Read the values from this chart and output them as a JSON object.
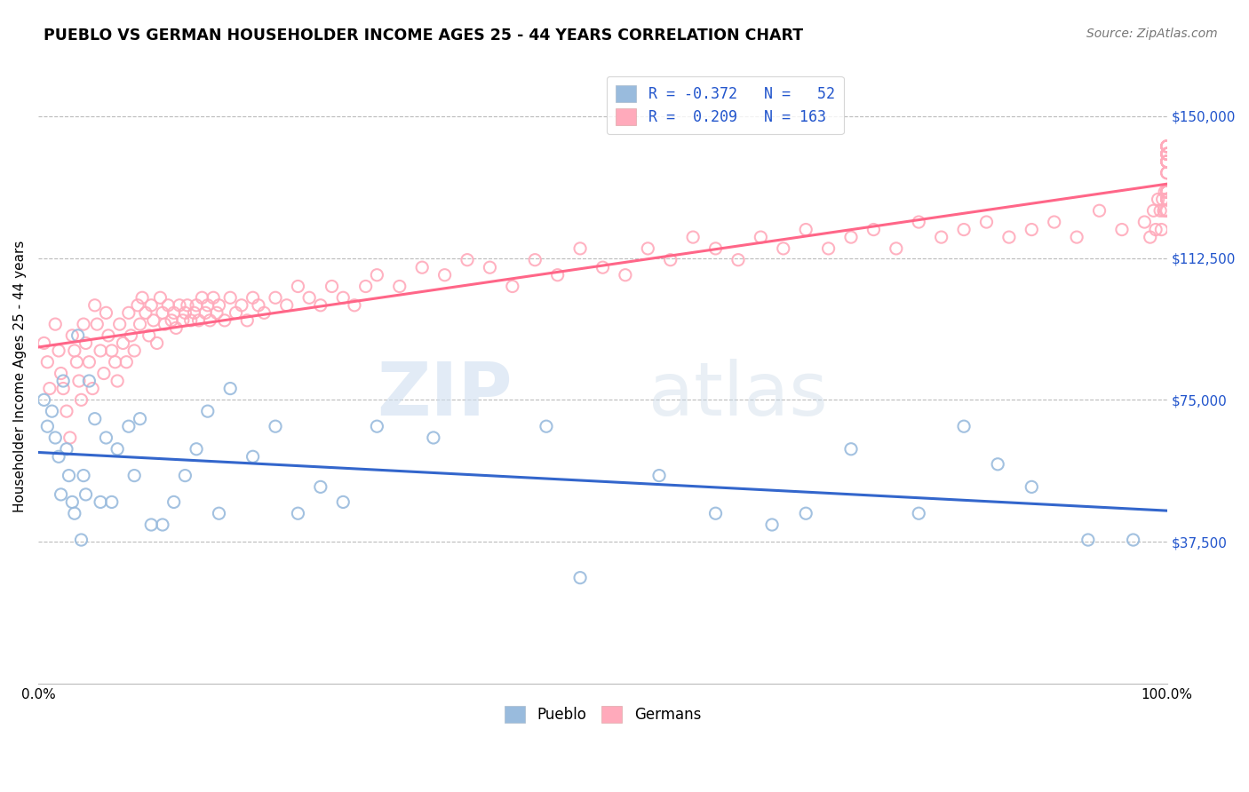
{
  "title": "PUEBLO VS GERMAN HOUSEHOLDER INCOME AGES 25 - 44 YEARS CORRELATION CHART",
  "source": "Source: ZipAtlas.com",
  "ylabel": "Householder Income Ages 25 - 44 years",
  "ytick_labels": [
    "$37,500",
    "$75,000",
    "$112,500",
    "$150,000"
  ],
  "ytick_values": [
    37500,
    75000,
    112500,
    150000
  ],
  "ymin": 0,
  "ymax": 162500,
  "xmin": 0.0,
  "xmax": 1.0,
  "legend_blue_label": "R = -0.372   N =   52",
  "legend_pink_label": "R =  0.209   N = 163",
  "legend_pueblo": "Pueblo",
  "legend_germans": "Germans",
  "blue_color": "#99BBDD",
  "pink_color": "#FFAABB",
  "blue_line_color": "#3366CC",
  "pink_line_color": "#FF6688",
  "pueblo_x": [
    0.005,
    0.008,
    0.012,
    0.015,
    0.018,
    0.02,
    0.022,
    0.025,
    0.027,
    0.03,
    0.032,
    0.035,
    0.038,
    0.04,
    0.042,
    0.045,
    0.05,
    0.055,
    0.06,
    0.065,
    0.07,
    0.08,
    0.085,
    0.09,
    0.1,
    0.11,
    0.12,
    0.13,
    0.14,
    0.15,
    0.16,
    0.17,
    0.19,
    0.21,
    0.23,
    0.25,
    0.27,
    0.3,
    0.35,
    0.45,
    0.48,
    0.55,
    0.6,
    0.65,
    0.68,
    0.72,
    0.78,
    0.82,
    0.85,
    0.88,
    0.93,
    0.97
  ],
  "pueblo_y": [
    75000,
    68000,
    72000,
    65000,
    60000,
    50000,
    80000,
    62000,
    55000,
    48000,
    45000,
    92000,
    38000,
    55000,
    50000,
    80000,
    70000,
    48000,
    65000,
    48000,
    62000,
    68000,
    55000,
    70000,
    42000,
    42000,
    48000,
    55000,
    62000,
    72000,
    45000,
    78000,
    60000,
    68000,
    45000,
    52000,
    48000,
    68000,
    65000,
    68000,
    28000,
    55000,
    45000,
    42000,
    45000,
    62000,
    45000,
    68000,
    58000,
    52000,
    38000,
    38000
  ],
  "german_x": [
    0.005,
    0.008,
    0.01,
    0.015,
    0.018,
    0.02,
    0.022,
    0.025,
    0.028,
    0.03,
    0.032,
    0.034,
    0.036,
    0.038,
    0.04,
    0.042,
    0.045,
    0.048,
    0.05,
    0.052,
    0.055,
    0.058,
    0.06,
    0.062,
    0.065,
    0.068,
    0.07,
    0.072,
    0.075,
    0.078,
    0.08,
    0.082,
    0.085,
    0.088,
    0.09,
    0.092,
    0.095,
    0.098,
    0.1,
    0.102,
    0.105,
    0.108,
    0.11,
    0.112,
    0.115,
    0.118,
    0.12,
    0.122,
    0.125,
    0.128,
    0.13,
    0.132,
    0.135,
    0.138,
    0.14,
    0.142,
    0.145,
    0.148,
    0.15,
    0.152,
    0.155,
    0.158,
    0.16,
    0.165,
    0.17,
    0.175,
    0.18,
    0.185,
    0.19,
    0.195,
    0.2,
    0.21,
    0.22,
    0.23,
    0.24,
    0.25,
    0.26,
    0.27,
    0.28,
    0.29,
    0.3,
    0.32,
    0.34,
    0.36,
    0.38,
    0.4,
    0.42,
    0.44,
    0.46,
    0.48,
    0.5,
    0.52,
    0.54,
    0.56,
    0.58,
    0.6,
    0.62,
    0.64,
    0.66,
    0.68,
    0.7,
    0.72,
    0.74,
    0.76,
    0.78,
    0.8,
    0.82,
    0.84,
    0.86,
    0.88,
    0.9,
    0.92,
    0.94,
    0.96,
    0.98,
    0.985,
    0.988,
    0.99,
    0.992,
    0.994,
    0.995,
    0.996,
    0.997,
    0.998,
    0.999,
    1.0,
    1.0,
    1.0,
    1.0,
    1.0,
    1.0,
    1.0,
    1.0,
    1.0,
    1.0,
    1.0,
    1.0,
    1.0,
    1.0,
    1.0,
    1.0,
    1.0,
    1.0,
    1.0,
    1.0,
    1.0,
    1.0,
    1.0,
    1.0,
    1.0,
    1.0,
    1.0,
    1.0,
    1.0,
    1.0,
    1.0,
    1.0,
    1.0,
    1.0,
    1.0,
    1.0,
    1.0,
    1.0
  ],
  "german_y": [
    90000,
    85000,
    78000,
    95000,
    88000,
    82000,
    78000,
    72000,
    65000,
    92000,
    88000,
    85000,
    80000,
    75000,
    95000,
    90000,
    85000,
    78000,
    100000,
    95000,
    88000,
    82000,
    98000,
    92000,
    88000,
    85000,
    80000,
    95000,
    90000,
    85000,
    98000,
    92000,
    88000,
    100000,
    95000,
    102000,
    98000,
    92000,
    100000,
    96000,
    90000,
    102000,
    98000,
    95000,
    100000,
    96000,
    98000,
    94000,
    100000,
    96000,
    98000,
    100000,
    96000,
    98000,
    100000,
    96000,
    102000,
    98000,
    100000,
    96000,
    102000,
    98000,
    100000,
    96000,
    102000,
    98000,
    100000,
    96000,
    102000,
    100000,
    98000,
    102000,
    100000,
    105000,
    102000,
    100000,
    105000,
    102000,
    100000,
    105000,
    108000,
    105000,
    110000,
    108000,
    112000,
    110000,
    105000,
    112000,
    108000,
    115000,
    110000,
    108000,
    115000,
    112000,
    118000,
    115000,
    112000,
    118000,
    115000,
    120000,
    115000,
    118000,
    120000,
    115000,
    122000,
    118000,
    120000,
    122000,
    118000,
    120000,
    122000,
    118000,
    125000,
    120000,
    122000,
    118000,
    125000,
    120000,
    128000,
    125000,
    120000,
    128000,
    125000,
    130000,
    125000,
    128000,
    130000,
    125000,
    128000,
    130000,
    128000,
    130000,
    128000,
    130000,
    128000,
    140000,
    135000,
    138000,
    140000,
    135000,
    142000,
    138000,
    140000,
    142000,
    138000,
    140000,
    142000,
    138000,
    140000,
    135000,
    138000,
    140000,
    142000,
    138000,
    140000,
    142000,
    128000,
    130000,
    128000,
    130000,
    128000,
    140000,
    142000
  ]
}
